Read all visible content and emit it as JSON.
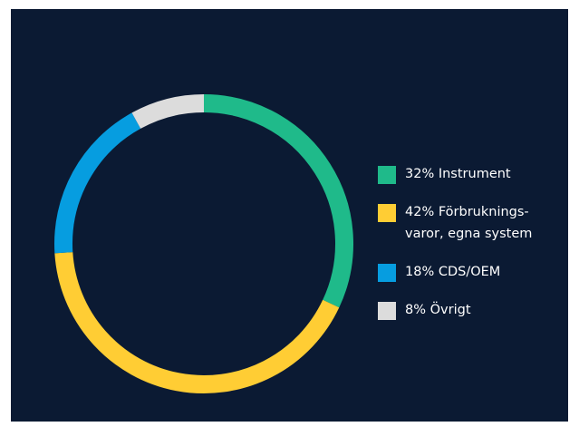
{
  "chart_data": {
    "type": "donut",
    "categories": [
      "Instrument",
      "Förbruknings-varor, egna system",
      "CDS/OEM",
      "Övrigt"
    ],
    "values": [
      32,
      42,
      18,
      8
    ],
    "value_labels": [
      "32%",
      "42%",
      "18%",
      "8%"
    ],
    "colors": [
      "#1fba8a",
      "#ffcd34",
      "#069de0",
      "#dcdcdc"
    ],
    "legend": "right"
  }
}
